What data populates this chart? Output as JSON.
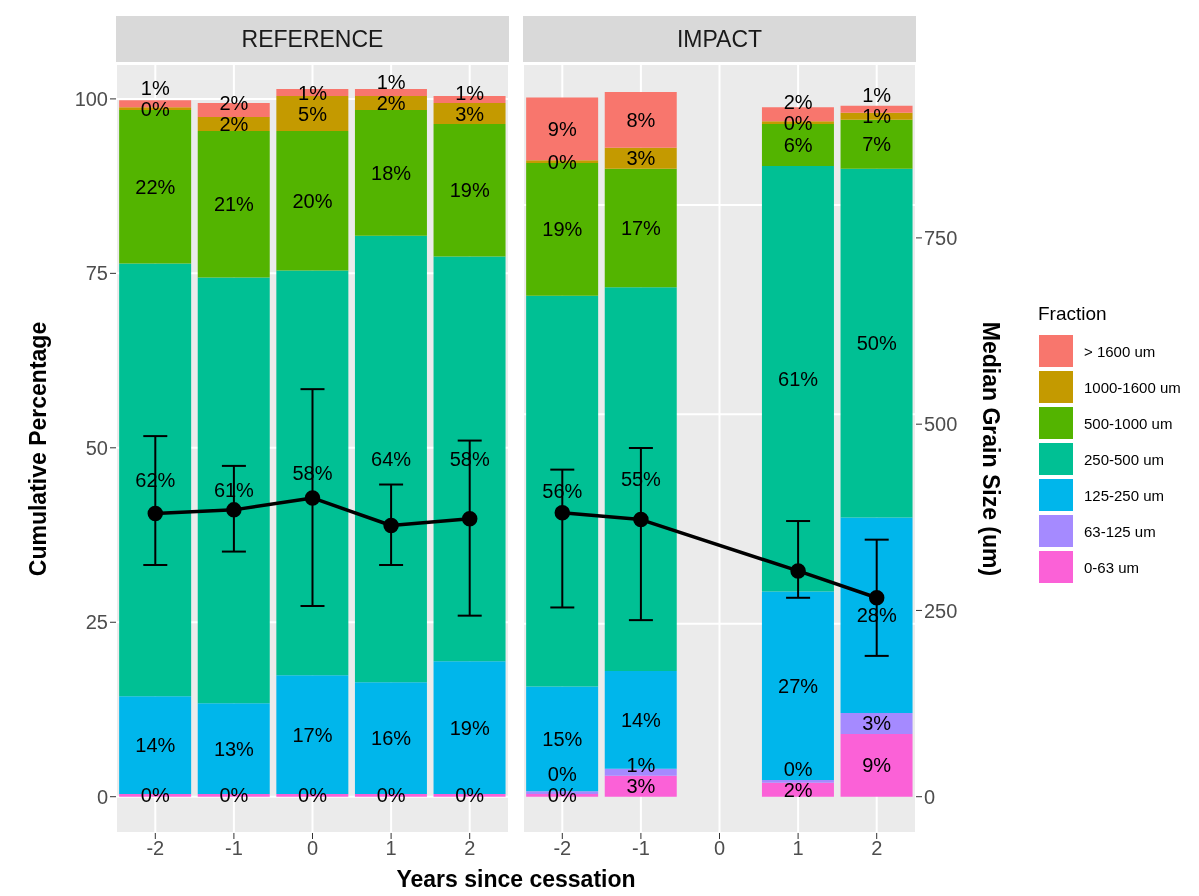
{
  "chart_data": [
    {
      "type": "bar",
      "title": "REFERENCE",
      "xlabel": "Years since cessation",
      "ylabel": "Cumulative Percentage",
      "categories": [
        "-2",
        "-1",
        "0",
        "1",
        "2"
      ],
      "stacked": true,
      "ylim": [
        -5.2,
        105
      ],
      "yticks": [
        0,
        25,
        50,
        75,
        100
      ],
      "y2lim": [
        -48.7,
        983.4
      ],
      "grid": true,
      "series": [
        {
          "color": "#fb61d7",
          "values": [
            0.4,
            0.4,
            0.4,
            0.4,
            0.4
          ],
          "value_labels": [
            "0%",
            "0%",
            "0%",
            "0%",
            "0%"
          ]
        },
        {
          "color": "#a58aff",
          "values": [
            0,
            0,
            0,
            0,
            0
          ],
          "value_labels": [
            null,
            null,
            null,
            null,
            null
          ]
        },
        {
          "color": "#00b6eb",
          "values": [
            14,
            13,
            17,
            16,
            19
          ],
          "value_labels": [
            "14%",
            "13%",
            "17%",
            "16%",
            "19%"
          ]
        },
        {
          "color": "#00c094",
          "values": [
            62,
            61,
            58,
            64,
            58
          ],
          "value_labels": [
            "62%",
            "61%",
            "58%",
            "64%",
            "58%"
          ]
        },
        {
          "color": "#53b400",
          "values": [
            22,
            21,
            20,
            18,
            19
          ],
          "value_labels": [
            "22%",
            "21%",
            "20%",
            "18%",
            "19%"
          ]
        },
        {
          "color": "#c49a00",
          "values": [
            0.4,
            2,
            5,
            2,
            3
          ],
          "value_labels": [
            "0%",
            "2%",
            "5%",
            "2%",
            "3%"
          ]
        },
        {
          "color": "#f8766d",
          "values": [
            1,
            2,
            1,
            1,
            1
          ],
          "value_labels": [
            "1%",
            "2%",
            "1%",
            "1%",
            "1%"
          ]
        },
        {
          "type": "line",
          "axis": "y2",
          "color": "#000000",
          "marker": "circle",
          "values": [
            380,
            385,
            401,
            364,
            373
          ],
          "errors": [
            [
              311,
              484
            ],
            [
              329,
              444
            ],
            [
              256,
              547
            ],
            [
              311,
              419
            ],
            [
              243,
              478
            ]
          ]
        }
      ]
    },
    {
      "type": "bar",
      "title": "IMPACT",
      "y2label": "Median Grain Size (um)",
      "legend_title": "Fraction",
      "categories": [
        "-2",
        "-1",
        "0",
        "1",
        "2"
      ],
      "stacked": true,
      "ylim": [
        -5.2,
        105
      ],
      "y2lim": [
        -48.7,
        983.4
      ],
      "y2ticks": [
        0,
        250,
        500,
        750
      ],
      "grid": true,
      "legend": "right",
      "series": [
        {
          "name": "0-63 um",
          "color": "#fb61d7",
          "values": [
            0.4,
            3,
            null,
            2,
            9
          ],
          "value_labels": [
            "0%",
            "3%",
            null,
            "2%",
            "9%"
          ]
        },
        {
          "name": "63-125 um",
          "color": "#a58aff",
          "values": [
            0.4,
            1,
            null,
            0.4,
            3
          ],
          "value_labels": [
            "0%",
            "1%",
            null,
            "0%",
            "3%"
          ]
        },
        {
          "name": "125-250 um",
          "color": "#00b6eb",
          "values": [
            15,
            14,
            null,
            27,
            28
          ],
          "value_labels": [
            "15%",
            "14%",
            null,
            "27%",
            "28%"
          ]
        },
        {
          "name": "250-500 um",
          "color": "#00c094",
          "values": [
            56,
            55,
            null,
            61,
            50
          ],
          "value_labels": [
            "56%",
            "55%",
            null,
            "61%",
            "50%"
          ]
        },
        {
          "name": "500-1000 um",
          "color": "#53b400",
          "values": [
            19,
            17,
            null,
            6,
            7
          ],
          "value_labels": [
            "19%",
            "17%",
            null,
            "6%",
            "7%"
          ]
        },
        {
          "name": "1000-1600 um",
          "color": "#c49a00",
          "values": [
            0.4,
            3,
            null,
            0.4,
            1
          ],
          "value_labels": [
            "0%",
            "3%",
            null,
            "0%",
            "1%"
          ]
        },
        {
          "name": "> 1600 um",
          "color": "#f8766d",
          "values": [
            9,
            8,
            null,
            2,
            1
          ],
          "value_labels": [
            "9%",
            "8%",
            null,
            "2%",
            "1%"
          ]
        },
        {
          "type": "line",
          "axis": "y2",
          "color": "#000000",
          "marker": "circle",
          "values": [
            381,
            372,
            null,
            303,
            267
          ],
          "errors": [
            [
              254,
              439
            ],
            [
              237,
              468
            ],
            null,
            [
              267,
              370
            ],
            [
              189,
              345
            ]
          ]
        }
      ]
    }
  ]
}
